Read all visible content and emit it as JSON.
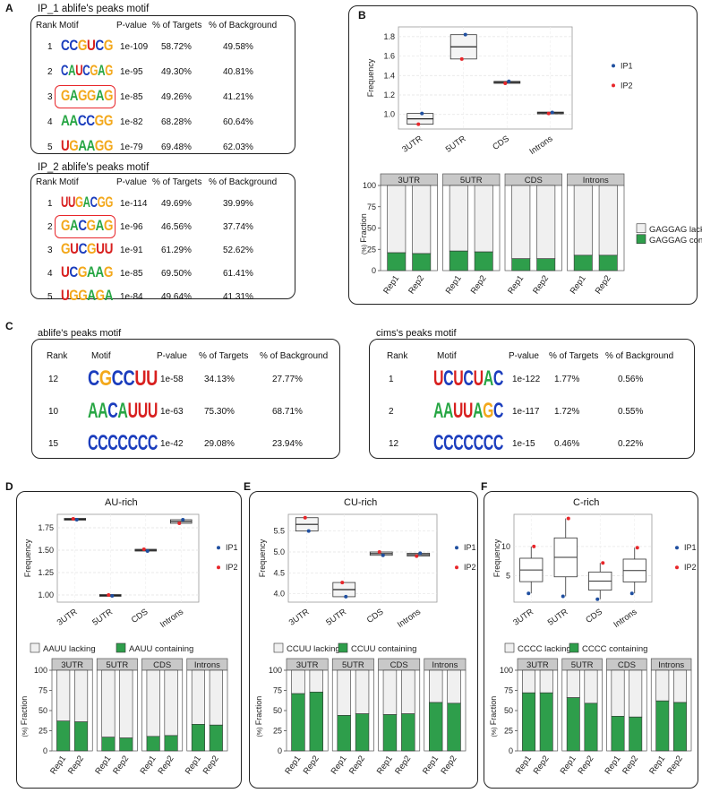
{
  "panels": {
    "a": "A",
    "b": "B",
    "c": "C",
    "d": "D",
    "e": "E",
    "f": "F"
  },
  "colors": {
    "green": "#2e9e4b",
    "lacking": "#f0f0f0",
    "ip1": "#1f4fa0",
    "ip2": "#e8262a",
    "A": "#27a644",
    "C": "#1b3dbd",
    "G": "#f3a81b",
    "U": "#d8201f"
  },
  "ip1_table": {
    "title": "IP_1 ablife's peaks motif",
    "headers": [
      "Rank",
      "Motif",
      "P-value",
      "% of Targets",
      "% of Background"
    ],
    "rows": [
      {
        "rank": "1",
        "motif": "CCGUCG",
        "p": "1e-109",
        "t": "58.72%",
        "b": "49.58%"
      },
      {
        "rank": "2",
        "motif": "CAUCGAG",
        "p": "1e-95",
        "t": "49.30%",
        "b": "40.81%"
      },
      {
        "rank": "3",
        "motif": "GAGGAG",
        "p": "1e-85",
        "t": "49.26%",
        "b": "41.21%"
      },
      {
        "rank": "4",
        "motif": "AACCGG",
        "p": "1e-82",
        "t": "68.28%",
        "b": "60.64%"
      },
      {
        "rank": "5",
        "motif": "UGAAGG",
        "p": "1e-79",
        "t": "69.48%",
        "b": "62.03%"
      }
    ]
  },
  "ip2_table": {
    "title": "IP_2 ablife's peaks motif",
    "headers": [
      "Rank",
      "Motif",
      "P-value",
      "% of Targets",
      "% of Background"
    ],
    "rows": [
      {
        "rank": "1",
        "motif": "UUGACGG",
        "p": "1e-114",
        "t": "49.69%",
        "b": "39.99%"
      },
      {
        "rank": "2",
        "motif": "GACGAG",
        "p": "1e-96",
        "t": "46.56%",
        "b": "37.74%"
      },
      {
        "rank": "3",
        "motif": "GUCGUU",
        "p": "1e-91",
        "t": "61.29%",
        "b": "52.62%"
      },
      {
        "rank": "4",
        "motif": "UCGAAG",
        "p": "1e-85",
        "t": "69.50%",
        "b": "61.41%"
      },
      {
        "rank": "5",
        "motif": "UGGAGA",
        "p": "1e-84",
        "t": "49.64%",
        "b": "41.31%"
      }
    ]
  },
  "c_ablife": {
    "title": "ablife's peaks motif",
    "headers": [
      "Rank",
      "Motif",
      "P-value",
      "% of Targets",
      "% of Background"
    ],
    "rows": [
      {
        "rank": "12",
        "motif": "CGCCUU",
        "p": "1e-58",
        "t": "34.13%",
        "b": "27.77%"
      },
      {
        "rank": "10",
        "motif": "AACAUUU",
        "p": "1e-63",
        "t": "75.30%",
        "b": "68.71%"
      },
      {
        "rank": "15",
        "motif": "CCCCCCC",
        "p": "1e-42",
        "t": "29.08%",
        "b": "23.94%"
      }
    ]
  },
  "c_cims": {
    "title": "cims's peaks motif",
    "headers": [
      "Rank",
      "Motif",
      "P-value",
      "% of Targets",
      "% of Background"
    ],
    "rows": [
      {
        "rank": "1",
        "motif": "UCUCUAC",
        "p": "1e-122",
        "t": "1.77%",
        "b": "0.56%"
      },
      {
        "rank": "2",
        "motif": "AAUUAGC",
        "p": "1e-117",
        "t": "1.72%",
        "b": "0.55%"
      },
      {
        "rank": "12",
        "motif": "CCCCCCC",
        "p": "1e-15",
        "t": "0.46%",
        "b": "0.22%"
      }
    ]
  },
  "chart_data": [
    {
      "id": "B-top",
      "type": "scatter",
      "panel": "B",
      "ylabel": "Frequency",
      "categories": [
        "3UTR",
        "5UTR",
        "CDS",
        "Introns"
      ],
      "ylim": [
        0.85,
        1.9
      ],
      "yticks": [
        1.0,
        1.2,
        1.4,
        1.6,
        1.8
      ],
      "yticklabels": [
        "1.0",
        "1.2",
        "1.4",
        "1.6",
        "1.8"
      ],
      "legend": [
        "IP1",
        "IP2"
      ],
      "series": [
        {
          "name": "IP1",
          "values": [
            1.01,
            1.82,
            1.34,
            1.02
          ]
        },
        {
          "name": "IP2",
          "values": [
            0.9,
            1.57,
            1.32,
            1.01
          ]
        }
      ]
    },
    {
      "id": "B-bottom",
      "type": "bar",
      "panel": "B",
      "ylabel": "Fraction",
      "ylabel_unit": "(%)",
      "facets": [
        "3UTR",
        "5UTR",
        "CDS",
        "Introns"
      ],
      "x": [
        "Rep1",
        "Rep2"
      ],
      "ylim": [
        0,
        100
      ],
      "yticks": [
        0,
        25,
        50,
        75,
        100
      ],
      "legend": [
        "GAGGAG lacking",
        "GAGGAG containing"
      ],
      "containing": [
        [
          21,
          20
        ],
        [
          23,
          22
        ],
        [
          14,
          14
        ],
        [
          18,
          18
        ]
      ]
    },
    {
      "id": "D-top",
      "type": "scatter",
      "panel": "D",
      "title": "AU-rich",
      "ylabel": "Frequency",
      "categories": [
        "3UTR",
        "5UTR",
        "CDS",
        "Introns"
      ],
      "ylim": [
        0.92,
        1.9
      ],
      "yticks": [
        1.0,
        1.25,
        1.5,
        1.75
      ],
      "yticklabels": [
        "1.00",
        "1.25",
        "1.50",
        "1.75"
      ],
      "legend": [
        "IP1",
        "IP2"
      ],
      "series": [
        {
          "name": "IP1",
          "values": [
            1.84,
            0.99,
            1.49,
            1.84
          ]
        },
        {
          "name": "IP2",
          "values": [
            1.85,
            1.0,
            1.51,
            1.8
          ]
        }
      ]
    },
    {
      "id": "D-bottom",
      "type": "bar",
      "panel": "D",
      "ylabel": "Fraction",
      "ylabel_unit": "(%)",
      "facets": [
        "3UTR",
        "5UTR",
        "CDS",
        "Introns"
      ],
      "x": [
        "Rep1",
        "Rep2"
      ],
      "ylim": [
        0,
        100
      ],
      "yticks": [
        0,
        25,
        50,
        75,
        100
      ],
      "legend": [
        "AAUU lacking",
        "AAUU containing"
      ],
      "containing": [
        [
          37,
          36
        ],
        [
          17,
          16
        ],
        [
          18,
          19
        ],
        [
          33,
          32
        ]
      ]
    },
    {
      "id": "E-top",
      "type": "scatter",
      "panel": "E",
      "title": "CU-rich",
      "ylabel": "Frequency",
      "categories": [
        "3UTR",
        "5UTR",
        "CDS",
        "Introns"
      ],
      "ylim": [
        3.8,
        5.9
      ],
      "yticks": [
        4.0,
        4.5,
        5.0,
        5.5
      ],
      "yticklabels": [
        "4.0",
        "4.5",
        "5.0",
        "5.5"
      ],
      "legend": [
        "IP1",
        "IP2"
      ],
      "series": [
        {
          "name": "IP1",
          "values": [
            5.5,
            3.93,
            4.92,
            4.97
          ]
        },
        {
          "name": "IP2",
          "values": [
            5.82,
            4.27,
            5.0,
            4.9
          ]
        }
      ]
    },
    {
      "id": "E-bottom",
      "type": "bar",
      "panel": "E",
      "ylabel": "Fraction",
      "ylabel_unit": "(%)",
      "facets": [
        "3UTR",
        "5UTR",
        "CDS",
        "Introns"
      ],
      "x": [
        "Rep1",
        "Rep2"
      ],
      "ylim": [
        0,
        100
      ],
      "yticks": [
        0,
        25,
        50,
        75,
        100
      ],
      "legend": [
        "CCUU lacking",
        "CCUU containing"
      ],
      "containing": [
        [
          71,
          73
        ],
        [
          44,
          46
        ],
        [
          45,
          46
        ],
        [
          60,
          59
        ]
      ]
    },
    {
      "id": "F-top",
      "type": "box",
      "panel": "F",
      "title": "C-rich",
      "ylabel": "Frequency",
      "categories": [
        "3UTR",
        "5UTR",
        "CDS",
        "Introns"
      ],
      "ylim": [
        0.5,
        15.5
      ],
      "yticks": [
        5,
        10
      ],
      "yticklabels": [
        "5",
        "10"
      ],
      "legend": [
        "IP1",
        "IP2"
      ],
      "series": [
        {
          "name": "IP1",
          "values": [
            2.0,
            1.5,
            1.0,
            2.0
          ]
        },
        {
          "name": "IP2",
          "values": [
            10.0,
            14.8,
            7.2,
            9.8
          ]
        }
      ]
    },
    {
      "id": "F-bottom",
      "type": "bar",
      "panel": "F",
      "ylabel": "Fraction",
      "ylabel_unit": "(%)",
      "facets": [
        "3UTR",
        "5UTR",
        "CDS",
        "Introns"
      ],
      "x": [
        "Rep1",
        "Rep2"
      ],
      "ylim": [
        0,
        100
      ],
      "yticks": [
        0,
        25,
        50,
        75,
        100
      ],
      "legend": [
        "CCCC lacking",
        "CCCC containing"
      ],
      "containing": [
        [
          72,
          72
        ],
        [
          66,
          59
        ],
        [
          43,
          42
        ],
        [
          62,
          60
        ]
      ]
    }
  ]
}
